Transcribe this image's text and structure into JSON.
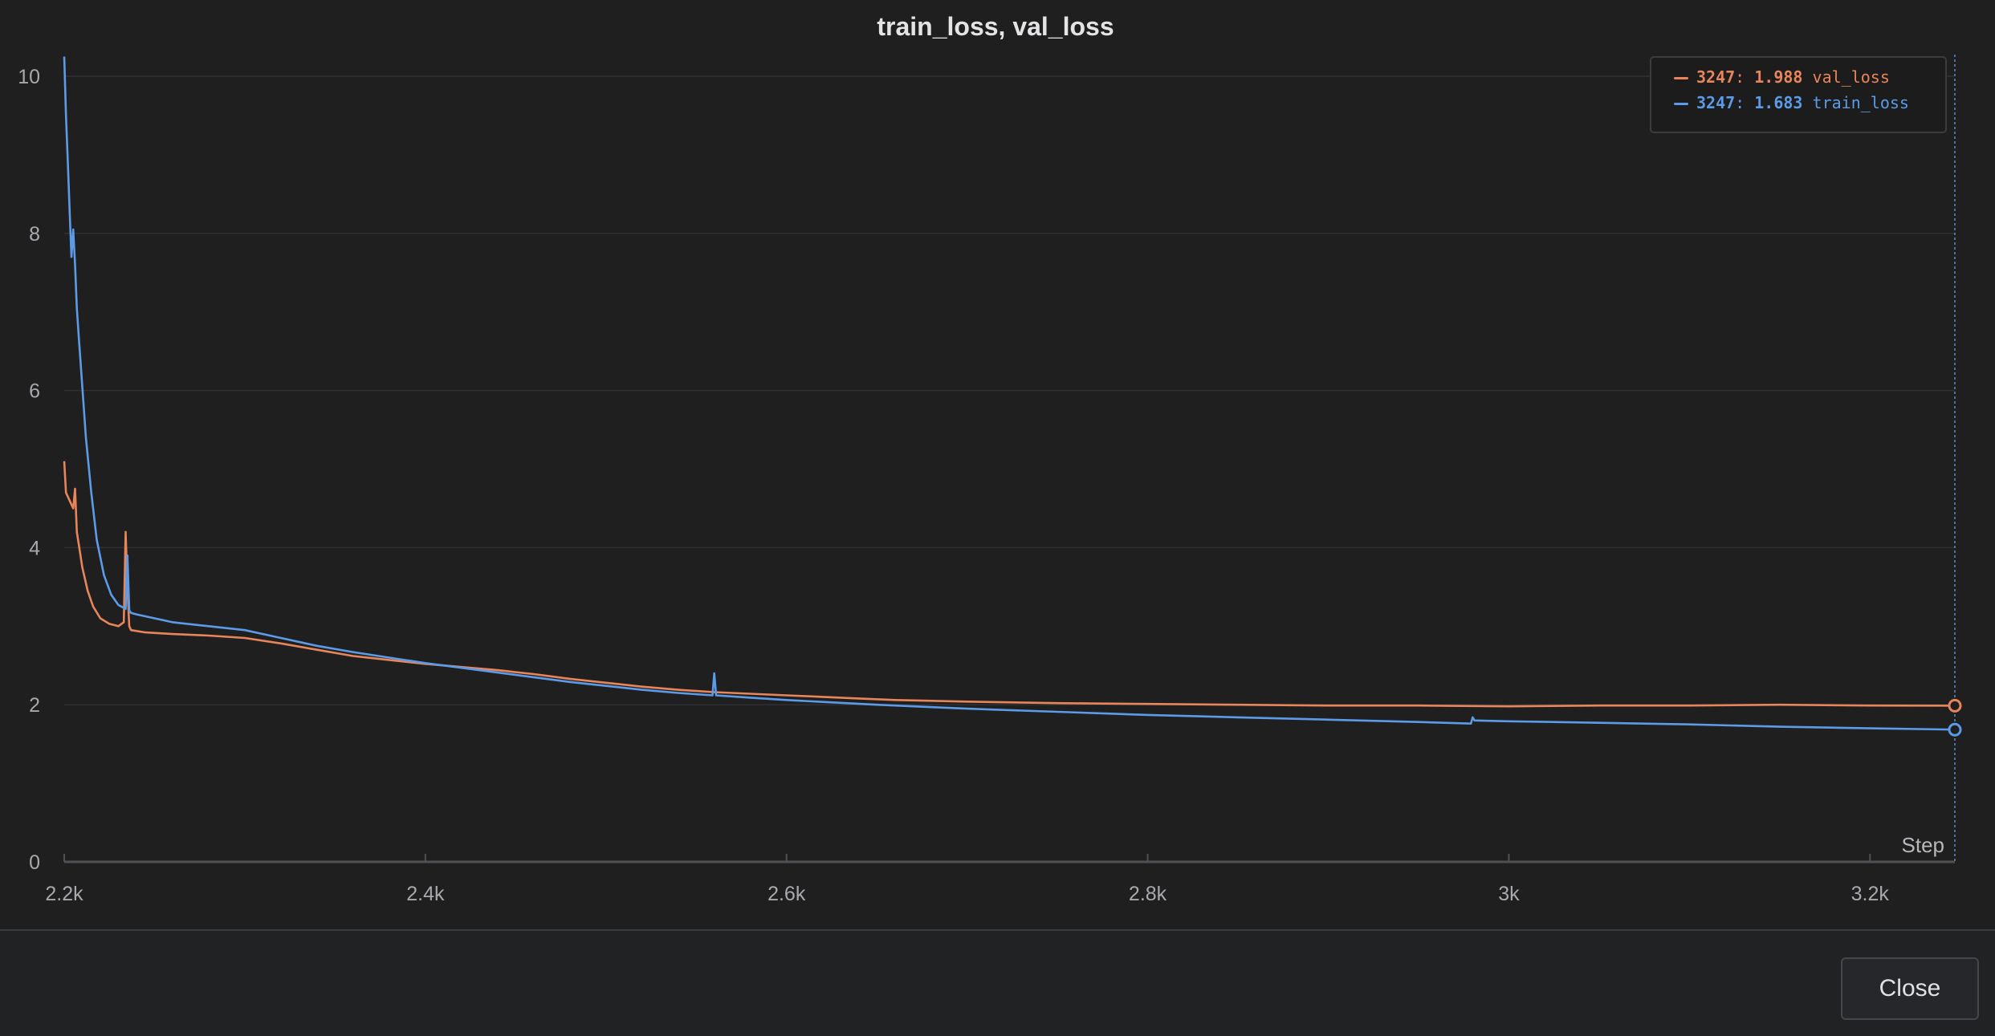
{
  "chart_data": {
    "type": "line",
    "title": "train_loss, val_loss",
    "xlabel": "Step",
    "ylabel": "",
    "xlim": [
      2200,
      3247
    ],
    "ylim": [
      0,
      10
    ],
    "x_ticks": [
      2200,
      2400,
      2600,
      2800,
      3000,
      3200
    ],
    "x_tick_labels": [
      "2.2k",
      "2.4k",
      "2.6k",
      "2.8k",
      "3k",
      "3.2k"
    ],
    "y_ticks": [
      0,
      2,
      4,
      6,
      8,
      10
    ],
    "y_tick_labels": [
      "0",
      "2",
      "4",
      "6",
      "8",
      "10"
    ],
    "grid": true,
    "legend_position": "top-right",
    "hover_step": 3247,
    "series": [
      {
        "name": "val_loss",
        "color": "#e8855a",
        "hover_value": "1.988",
        "x": [
          2200,
          2201,
          2203,
          2205,
          2206,
          2207,
          2208,
          2210,
          2213,
          2216,
          2220,
          2225,
          2230,
          2233,
          2234,
          2235,
          2236,
          2237,
          2245,
          2260,
          2280,
          2300,
          2320,
          2340,
          2360,
          2380,
          2400,
          2420,
          2440,
          2460,
          2480,
          2500,
          2520,
          2540,
          2560,
          2580,
          2600,
          2620,
          2640,
          2660,
          2680,
          2700,
          2750,
          2800,
          2850,
          2900,
          2950,
          3000,
          3050,
          3100,
          3150,
          3200,
          3247
        ],
        "y": [
          5.1,
          4.7,
          4.6,
          4.5,
          4.75,
          4.2,
          4.05,
          3.75,
          3.45,
          3.25,
          3.1,
          3.03,
          3.0,
          3.05,
          4.2,
          3.5,
          3.0,
          2.95,
          2.92,
          2.9,
          2.88,
          2.85,
          2.78,
          2.7,
          2.62,
          2.57,
          2.52,
          2.48,
          2.44,
          2.39,
          2.33,
          2.28,
          2.23,
          2.19,
          2.16,
          2.14,
          2.12,
          2.1,
          2.08,
          2.06,
          2.05,
          2.04,
          2.02,
          2.01,
          2.0,
          1.99,
          1.99,
          1.98,
          1.99,
          1.99,
          2.0,
          1.99,
          1.988
        ]
      },
      {
        "name": "train_loss",
        "color": "#5b9be8",
        "hover_value": "1.683",
        "x": [
          2200,
          2201,
          2202,
          2203,
          2204,
          2205,
          2206,
          2207,
          2208,
          2210,
          2212,
          2215,
          2218,
          2222,
          2226,
          2230,
          2234,
          2235,
          2236,
          2237,
          2240,
          2250,
          2260,
          2280,
          2300,
          2320,
          2340,
          2360,
          2380,
          2400,
          2420,
          2440,
          2460,
          2480,
          2500,
          2520,
          2540,
          2559,
          2560,
          2561,
          2580,
          2600,
          2650,
          2700,
          2750,
          2800,
          2850,
          2900,
          2950,
          2979,
          2980,
          2981,
          3000,
          3050,
          3100,
          3150,
          3200,
          3247
        ],
        "y": [
          10.25,
          9.5,
          8.9,
          8.3,
          7.7,
          8.05,
          7.6,
          7.05,
          6.7,
          6.05,
          5.4,
          4.7,
          4.1,
          3.65,
          3.4,
          3.27,
          3.22,
          3.9,
          3.2,
          3.17,
          3.15,
          3.1,
          3.05,
          3.0,
          2.95,
          2.85,
          2.75,
          2.67,
          2.6,
          2.53,
          2.47,
          2.41,
          2.35,
          2.29,
          2.24,
          2.19,
          2.15,
          2.12,
          2.4,
          2.12,
          2.09,
          2.06,
          2.0,
          1.95,
          1.91,
          1.87,
          1.84,
          1.81,
          1.78,
          1.76,
          1.84,
          1.8,
          1.79,
          1.77,
          1.75,
          1.72,
          1.7,
          1.683
        ]
      }
    ]
  },
  "close_button": {
    "label": "Close"
  }
}
